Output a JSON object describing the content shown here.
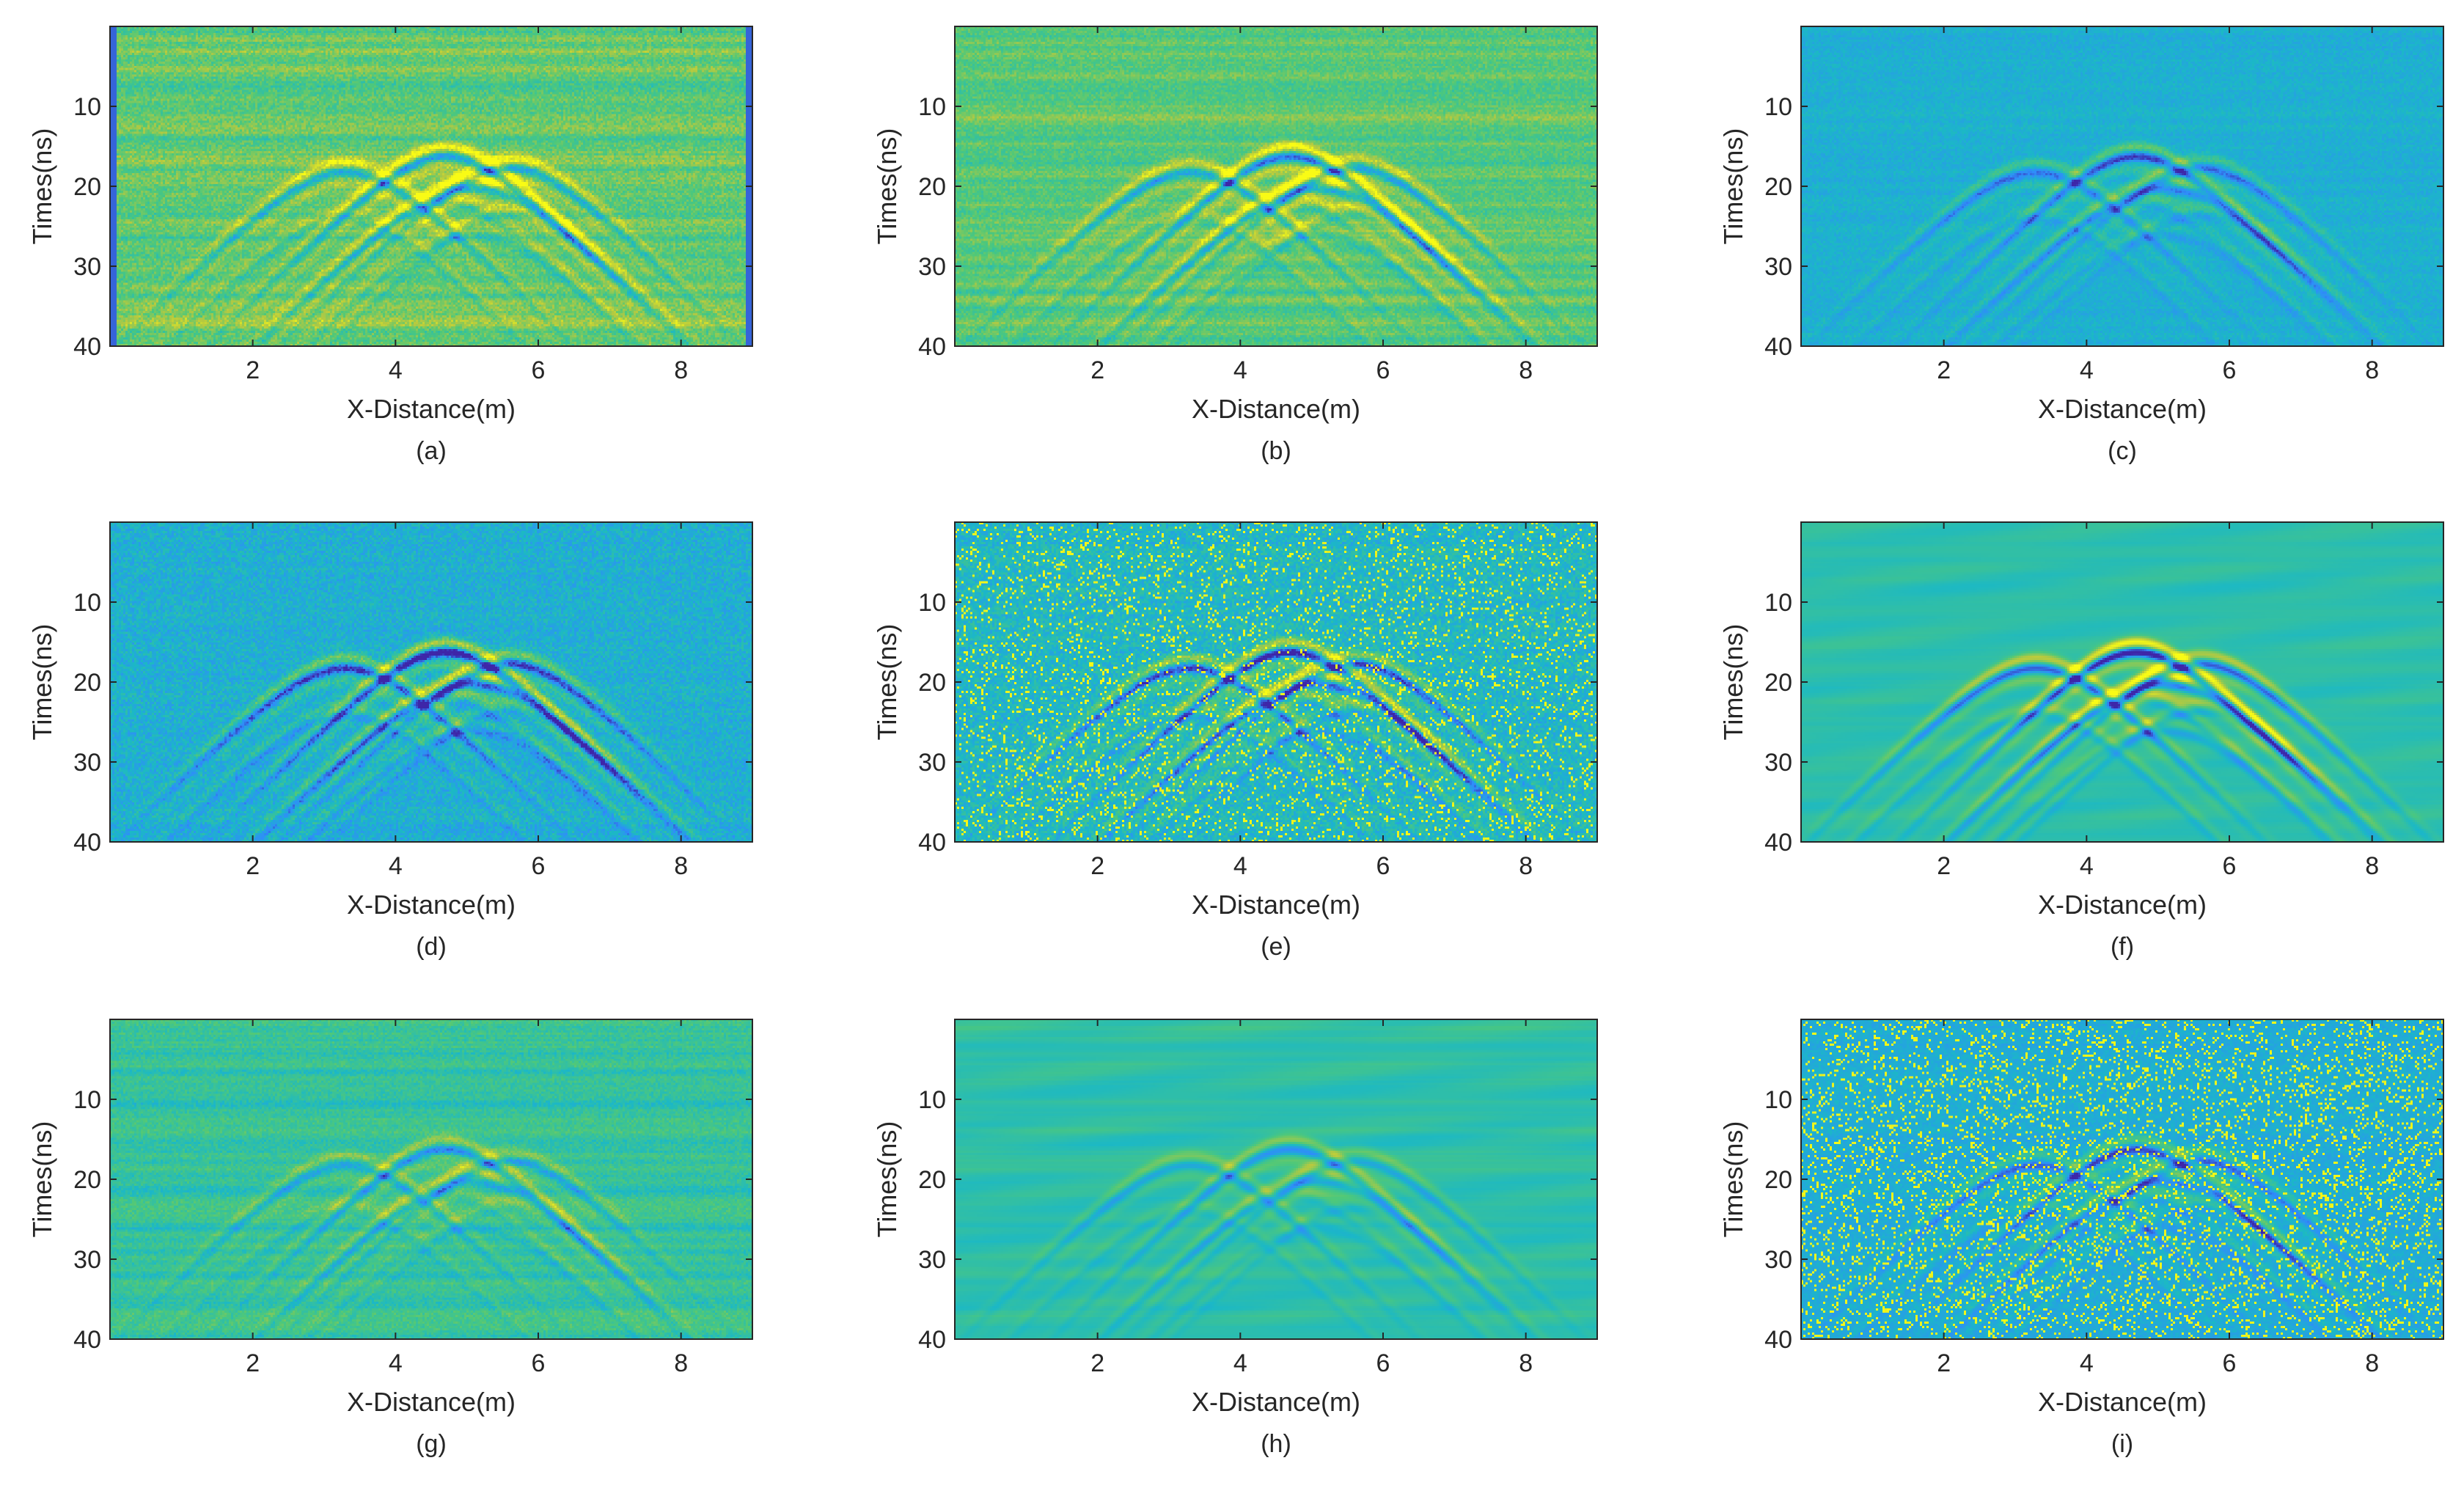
{
  "figure": {
    "panels": [
      {
        "caption": "(a)"
      },
      {
        "caption": "(b)"
      },
      {
        "caption": "(c)"
      },
      {
        "caption": "(d)"
      },
      {
        "caption": "(e)"
      },
      {
        "caption": "(f)"
      },
      {
        "caption": "(g)"
      },
      {
        "caption": "(h)"
      },
      {
        "caption": "(i)"
      }
    ]
  },
  "colormap": [
    "#3e26a8",
    "#2f8dfa",
    "#1bb8c6",
    "#4ec87a",
    "#b5c940",
    "#f9fb15"
  ],
  "chart_data": [
    {
      "type": "heatmap",
      "caption": "(a)",
      "xlabel": "X-Distance(m)",
      "ylabel": "Times(ns)",
      "xlim": [
        0,
        9
      ],
      "ylim": [
        0,
        40
      ],
      "y_reversed": true,
      "xticks": [
        2,
        4,
        6,
        8
      ],
      "yticks": [
        10,
        20,
        30,
        40
      ],
      "hyperbola_apex": {
        "x": 4.7,
        "t": 15
      },
      "background": "green-yellow with horizontal banding, blue edge columns"
    },
    {
      "type": "heatmap",
      "caption": "(b)",
      "xlabel": "X-Distance(m)",
      "ylabel": "Times(ns)",
      "xlim": [
        0,
        9
      ],
      "ylim": [
        0,
        40
      ],
      "y_reversed": true,
      "xticks": [
        2,
        4,
        6,
        8
      ],
      "yticks": [
        10,
        20,
        30,
        40
      ],
      "hyperbola_apex": {
        "x": 4.7,
        "t": 15
      },
      "background": "green-yellow with horizontal banding"
    },
    {
      "type": "heatmap",
      "caption": "(c)",
      "xlabel": "X-Distance(m)",
      "ylabel": "Times(ns)",
      "xlim": [
        0,
        9
      ],
      "ylim": [
        0,
        40
      ],
      "y_reversed": true,
      "xticks": [
        2,
        4,
        6,
        8
      ],
      "yticks": [
        10,
        20,
        30,
        40
      ],
      "hyperbola_apex": {
        "x": 4.7,
        "t": 15
      },
      "background": "blue, low noise"
    },
    {
      "type": "heatmap",
      "caption": "(d)",
      "xlabel": "X-Distance(m)",
      "ylabel": "Times(ns)",
      "xlim": [
        0,
        9
      ],
      "ylim": [
        0,
        40
      ],
      "y_reversed": true,
      "xticks": [
        2,
        4,
        6,
        8
      ],
      "yticks": [
        10,
        20,
        30,
        40
      ],
      "hyperbola_apex": {
        "x": 4.7,
        "t": 15
      },
      "background": "blue with speckle noise"
    },
    {
      "type": "heatmap",
      "caption": "(e)",
      "xlabel": "X-Distance(m)",
      "ylabel": "Times(ns)",
      "xlim": [
        0,
        9
      ],
      "ylim": [
        0,
        40
      ],
      "y_reversed": true,
      "xticks": [
        2,
        4,
        6,
        8
      ],
      "yticks": [
        10,
        20,
        30,
        40
      ],
      "hyperbola_apex": {
        "x": 4.7,
        "t": 15
      },
      "background": "blue-green with yellow impulse noise"
    },
    {
      "type": "heatmap",
      "caption": "(f)",
      "xlabel": "X-Distance(m)",
      "ylabel": "Times(ns)",
      "xlim": [
        0,
        9
      ],
      "ylim": [
        0,
        40
      ],
      "y_reversed": true,
      "xticks": [
        2,
        4,
        6,
        8
      ],
      "yticks": [
        10,
        20,
        30,
        40
      ],
      "hyperbola_apex": {
        "x": 4.7,
        "t": 15
      },
      "background": "smooth teal-green"
    },
    {
      "type": "heatmap",
      "caption": "(g)",
      "xlabel": "X-Distance(m)",
      "ylabel": "Times(ns)",
      "xlim": [
        0,
        9
      ],
      "ylim": [
        0,
        40
      ],
      "y_reversed": true,
      "xticks": [
        2,
        4,
        6,
        8
      ],
      "yticks": [
        10,
        20,
        30,
        40
      ],
      "hyperbola_apex": {
        "x": 4.7,
        "t": 15
      },
      "background": "green with horizontal streaks"
    },
    {
      "type": "heatmap",
      "caption": "(h)",
      "xlabel": "X-Distance(m)",
      "ylabel": "Times(ns)",
      "xlim": [
        0,
        9
      ],
      "ylim": [
        0,
        40
      ],
      "y_reversed": true,
      "xticks": [
        2,
        4,
        6,
        8
      ],
      "yticks": [
        10,
        20,
        30,
        40
      ],
      "hyperbola_apex": {
        "x": 4.7,
        "t": 15
      },
      "background": "smooth blurred green-blue"
    },
    {
      "type": "heatmap",
      "caption": "(i)",
      "xlabel": "X-Distance(m)",
      "ylabel": "Times(ns)",
      "xlim": [
        0,
        9
      ],
      "ylim": [
        0,
        40
      ],
      "y_reversed": true,
      "xticks": [
        2,
        4,
        6,
        8
      ],
      "yticks": [
        10,
        20,
        30,
        40
      ],
      "hyperbola_apex": {
        "x": 4.7,
        "t": 15
      },
      "background": "blue with dense yellow impulse noise"
    }
  ]
}
